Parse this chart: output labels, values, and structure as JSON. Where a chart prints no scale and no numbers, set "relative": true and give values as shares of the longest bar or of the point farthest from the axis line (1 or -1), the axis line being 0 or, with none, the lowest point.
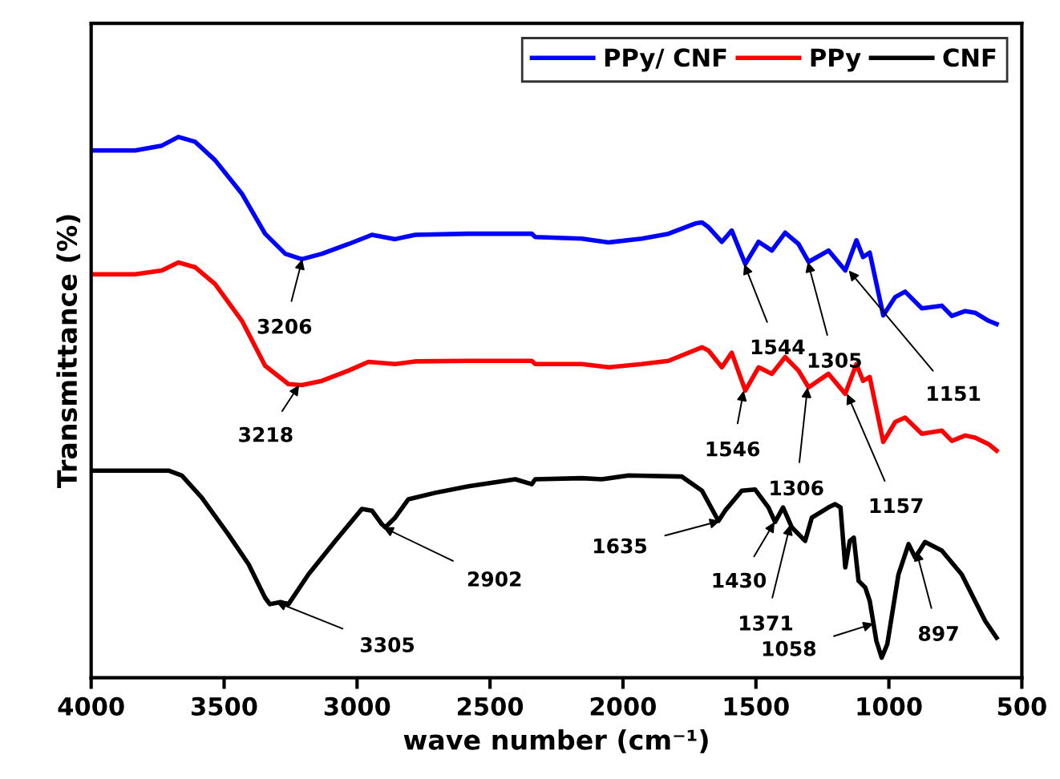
{
  "chart_data": {
    "type": "line",
    "relative": true,
    "xlabel": "wave number (cm⁻¹)",
    "ylabel": "Transmittance (%)",
    "xlim": [
      4000,
      500
    ],
    "xticks": [
      4000,
      3500,
      3000,
      2500,
      2000,
      1500,
      1000,
      500
    ],
    "tick_labels": "x",
    "grid": false,
    "legend": "top right",
    "line_style": "solid",
    "marker": "none",
    "series": [
      {
        "name": "PPy/ CNF",
        "color": "#0000ff",
        "x": [
          4000,
          3835,
          3734,
          3672,
          3609,
          3534,
          3433,
          3346,
          3270,
          3208,
          3132,
          3032,
          2944,
          2857,
          2781,
          2581,
          2343,
          2330,
          2155,
          2054,
          1929,
          1829,
          1728,
          1703,
          1678,
          1628,
          1591,
          1540,
          1490,
          1440,
          1390,
          1340,
          1302,
          1227,
          1164,
          1122,
          1097,
          1072,
          1021,
          976,
          939,
          876,
          801,
          763,
          713,
          676,
          625,
          595
        ],
        "values": [
          0.975,
          0.975,
          0.984,
          1.0,
          0.991,
          0.957,
          0.895,
          0.821,
          0.784,
          0.774,
          0.784,
          0.802,
          0.819,
          0.811,
          0.819,
          0.821,
          0.821,
          0.815,
          0.812,
          0.805,
          0.812,
          0.821,
          0.84,
          0.842,
          0.833,
          0.806,
          0.827,
          0.765,
          0.806,
          0.79,
          0.823,
          0.802,
          0.769,
          0.79,
          0.753,
          0.809,
          0.778,
          0.786,
          0.67,
          0.704,
          0.714,
          0.683,
          0.688,
          0.669,
          0.678,
          0.675,
          0.66,
          0.654
        ]
      },
      {
        "name": "PPy",
        "color": "#ff0000",
        "x": [
          4000,
          3835,
          3734,
          3672,
          3609,
          3534,
          3433,
          3346,
          3258,
          3208,
          3132,
          3032,
          2957,
          2857,
          2781,
          2581,
          2343,
          2330,
          2155,
          2054,
          1929,
          1829,
          1703,
          1678,
          1628,
          1591,
          1540,
          1490,
          1440,
          1390,
          1340,
          1302,
          1227,
          1164,
          1122,
          1097,
          1072,
          1021,
          976,
          939,
          876,
          801,
          763,
          713,
          676,
          625,
          595
        ],
        "values": [
          0.746,
          0.746,
          0.753,
          0.768,
          0.759,
          0.728,
          0.66,
          0.577,
          0.543,
          0.541,
          0.549,
          0.568,
          0.584,
          0.58,
          0.585,
          0.586,
          0.586,
          0.58,
          0.58,
          0.574,
          0.58,
          0.586,
          0.611,
          0.605,
          0.574,
          0.601,
          0.531,
          0.574,
          0.562,
          0.593,
          0.568,
          0.537,
          0.562,
          0.525,
          0.58,
          0.549,
          0.556,
          0.436,
          0.473,
          0.481,
          0.451,
          0.457,
          0.438,
          0.448,
          0.444,
          0.432,
          0.42
        ]
      },
      {
        "name": "CNF",
        "color": "#000000",
        "x": [
          4000,
          3709,
          3659,
          3584,
          3484,
          3408,
          3346,
          3328,
          3288,
          3258,
          3183,
          3082,
          2982,
          2944,
          2907,
          2894,
          2857,
          2807,
          2706,
          2581,
          2405,
          2343,
          2330,
          2155,
          2080,
          1979,
          1779,
          1703,
          1641,
          1616,
          1553,
          1503,
          1453,
          1428,
          1398,
          1365,
          1315,
          1290,
          1227,
          1202,
          1182,
          1164,
          1147,
          1132,
          1114,
          1089,
          1072,
          1047,
          1027,
          1006,
          964,
          926,
          901,
          864,
          801,
          726,
          676,
          638,
          595
        ],
        "values": [
          0.383,
          0.383,
          0.374,
          0.333,
          0.265,
          0.21,
          0.148,
          0.136,
          0.14,
          0.136,
          0.191,
          0.253,
          0.312,
          0.309,
          0.284,
          0.278,
          0.296,
          0.33,
          0.342,
          0.354,
          0.367,
          0.358,
          0.367,
          0.369,
          0.367,
          0.374,
          0.372,
          0.346,
          0.29,
          0.309,
          0.346,
          0.348,
          0.315,
          0.288,
          0.315,
          0.278,
          0.253,
          0.296,
          0.315,
          0.321,
          0.315,
          0.204,
          0.253,
          0.259,
          0.179,
          0.167,
          0.142,
          0.068,
          0.037,
          0.062,
          0.191,
          0.247,
          0.222,
          0.251,
          0.235,
          0.191,
          0.142,
          0.105,
          0.074
        ]
      }
    ],
    "annotations": [
      {
        "text": "3206",
        "x": 3206,
        "y": 0.774
      },
      {
        "text": "3218",
        "x": 3218,
        "y": 0.541
      },
      {
        "text": "3305",
        "x": 3305,
        "y": 0.14
      },
      {
        "text": "2902",
        "x": 2902,
        "y": 0.278
      },
      {
        "text": "1544",
        "x": 1544,
        "y": 0.765
      },
      {
        "text": "1305",
        "x": 1305,
        "y": 0.769
      },
      {
        "text": "1151",
        "x": 1151,
        "y": 0.753
      },
      {
        "text": "1546",
        "x": 1546,
        "y": 0.531
      },
      {
        "text": "1306",
        "x": 1306,
        "y": 0.537
      },
      {
        "text": "1157",
        "x": 1157,
        "y": 0.525
      },
      {
        "text": "1635",
        "x": 1635,
        "y": 0.29
      },
      {
        "text": "1430",
        "x": 1430,
        "y": 0.288
      },
      {
        "text": "1371",
        "x": 1371,
        "y": 0.283
      },
      {
        "text": "1058",
        "x": 1058,
        "y": 0.1
      },
      {
        "text": "897",
        "x": 897,
        "y": 0.235
      }
    ]
  }
}
